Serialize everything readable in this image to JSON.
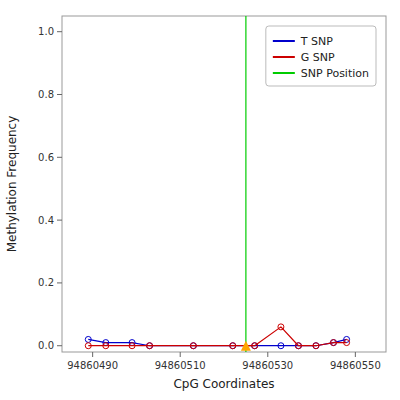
{
  "chart_data": {
    "type": "line",
    "x_label": "CpG Coordinates",
    "y_label": "Methylation Frequency",
    "x": [
      94860489,
      94860493,
      94860499,
      94860503,
      94860513,
      94860522,
      94860527,
      94860533,
      94860537,
      94860541,
      94860545,
      94860548
    ],
    "series": [
      {
        "name": "T SNP",
        "color": "#0000cc",
        "marker": "circle",
        "values": [
          0.02,
          0.01,
          0.01,
          0.0,
          0.0,
          0.0,
          0.0,
          0.0,
          0.0,
          0.0,
          0.01,
          0.02
        ]
      },
      {
        "name": "G SNP",
        "color": "#cc0000",
        "marker": "circle",
        "values": [
          0.0,
          0.0,
          0.0,
          0.0,
          0.0,
          0.0,
          0.0,
          0.06,
          0.0,
          0.0,
          0.01,
          0.01
        ]
      }
    ],
    "vlines": [
      {
        "name": "SNP Position",
        "x": 94860525,
        "color": "#00cc00"
      }
    ],
    "points": [
      {
        "x": 94860525,
        "y": 0.0,
        "color": "#FFA500",
        "marker": "triangle"
      }
    ],
    "xlim": [
      94860483,
      94860557
    ],
    "ylim": [
      -0.02,
      1.05
    ],
    "xticks": [
      94860490,
      94860510,
      94860530,
      94860550
    ],
    "yticks": [
      {
        "value": 0.0,
        "label": "0.0"
      },
      0.2,
      0.4,
      0.6,
      0.8,
      {
        "value": 1.0,
        "label": "1.0"
      }
    ],
    "grid": false,
    "legend": "upper right"
  }
}
